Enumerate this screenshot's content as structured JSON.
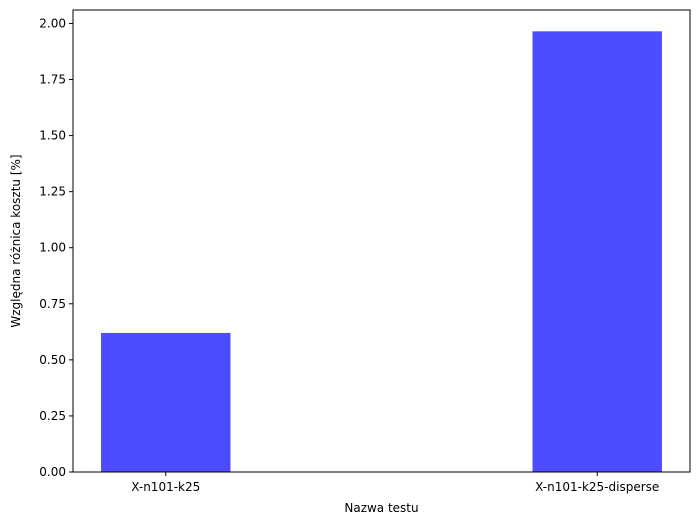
{
  "chart_data": {
    "type": "bar",
    "categories": [
      "X-n101-k25",
      "X-n101-k25-disperse"
    ],
    "values": [
      0.62,
      1.965
    ],
    "xlabel": "Nazwa testu",
    "ylabel": "Względna różnica kosztu [%]",
    "ylim": [
      0,
      2.06
    ],
    "yticks": [
      "0.00",
      "0.25",
      "0.50",
      "0.75",
      "1.00",
      "1.25",
      "1.50",
      "1.75",
      "2.00"
    ],
    "bar_color": "#4d4dff",
    "grid": false,
    "legend": "none"
  }
}
